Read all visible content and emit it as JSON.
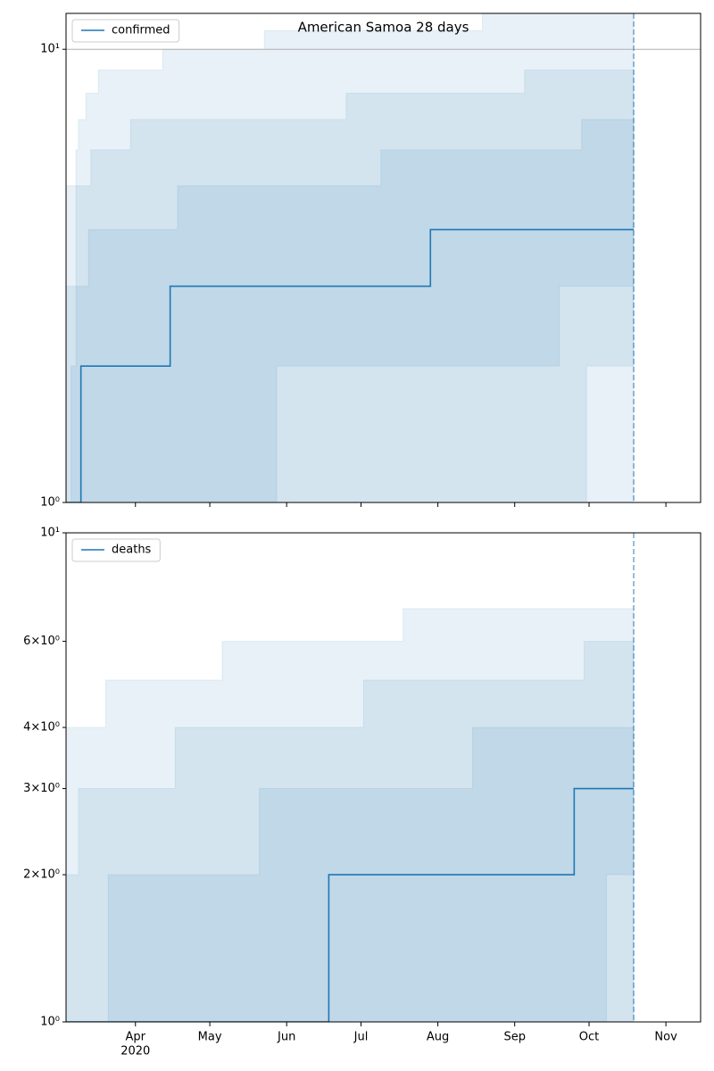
{
  "chart_data": [
    {
      "type": "line",
      "title": "American Samoa 28 days",
      "scale": "log",
      "xlim": [
        "2020-03-04",
        "2020-11-15"
      ],
      "ylim": [
        1,
        12
      ],
      "yticks": [
        {
          "value": 1,
          "label": "10⁰"
        },
        {
          "value": 10,
          "label": "10¹"
        }
      ],
      "xticks": [
        "2020-04-01",
        "2020-05-01",
        "2020-06-01",
        "2020-07-01",
        "2020-08-01",
        "2020-09-01",
        "2020-10-01",
        "2020-11-01"
      ],
      "hline": 10,
      "vline": "2020-10-19",
      "legend": "upper left",
      "band_color": "#1f77b4",
      "band_alpha": 0.1,
      "series": [
        {
          "name": "confirmed",
          "color": "#1f77b4",
          "x": [
            "2020-03-04",
            "2020-03-10",
            "2020-04-15",
            "2020-07-29",
            "2020-10-19"
          ],
          "values": [
            1,
            2,
            3,
            4,
            4
          ]
        }
      ],
      "bands": [
        {
          "x": [
            "2020-03-04",
            "2020-03-08",
            "2020-03-09",
            "2020-03-12",
            "2020-03-17",
            "2020-04-12",
            "2020-05-23",
            "2020-08-19",
            "2020-10-19"
          ],
          "upper": [
            5,
            6,
            7,
            8,
            9,
            10,
            11,
            13,
            13
          ],
          "lower": [
            1,
            1,
            1,
            1,
            1,
            1,
            1,
            1,
            1
          ]
        },
        {
          "x": [
            "2020-03-04",
            "2020-03-08",
            "2020-03-14",
            "2020-03-30",
            "2020-06-25",
            "2020-09-05",
            "2020-09-30",
            "2020-10-19"
          ],
          "upper": [
            3,
            5,
            6,
            7,
            8,
            9,
            9,
            9
          ],
          "lower": [
            1,
            1,
            1,
            1,
            1,
            1,
            2,
            2
          ]
        },
        {
          "x": [
            "2020-03-04",
            "2020-03-06",
            "2020-03-08",
            "2020-03-13",
            "2020-04-18",
            "2020-05-28",
            "2020-07-09",
            "2020-09-19",
            "2020-09-28",
            "2020-10-19"
          ],
          "upper": [
            1,
            2,
            3,
            4,
            5,
            5,
            6,
            6,
            7,
            7
          ],
          "lower": [
            1,
            1,
            1,
            1,
            1,
            2,
            2,
            3,
            3,
            3
          ]
        }
      ]
    },
    {
      "type": "line",
      "scale": "log",
      "xlim": [
        "2020-03-04",
        "2020-11-15"
      ],
      "ylim": [
        1,
        10
      ],
      "yticks": [
        {
          "value": 1,
          "label": "10⁰"
        },
        {
          "value": 2,
          "label": "2×10⁰"
        },
        {
          "value": 3,
          "label": "3×10⁰"
        },
        {
          "value": 4,
          "label": "4×10⁰"
        },
        {
          "value": 6,
          "label": "6×10⁰"
        },
        {
          "value": 10,
          "label": "10¹"
        }
      ],
      "xticks": [
        {
          "value": "2020-04-01",
          "label": "Apr"
        },
        {
          "value": "2020-05-01",
          "label": "May"
        },
        {
          "value": "2020-06-01",
          "label": "Jun"
        },
        {
          "value": "2020-07-01",
          "label": "Jul"
        },
        {
          "value": "2020-08-01",
          "label": "Aug"
        },
        {
          "value": "2020-09-01",
          "label": "Sep"
        },
        {
          "value": "2020-10-01",
          "label": "Oct"
        },
        {
          "value": "2020-11-01",
          "label": "Nov"
        }
      ],
      "xtick_sublabel": {
        "value": "2020-04-01",
        "label": "2020"
      },
      "vline": "2020-10-19",
      "legend": "upper left",
      "band_color": "#1f77b4",
      "band_alpha": 0.1,
      "series": [
        {
          "name": "deaths",
          "color": "#1f77b4",
          "x": [
            "2020-03-04",
            "2020-06-18",
            "2020-09-25",
            "2020-10-19"
          ],
          "values": [
            1,
            2,
            3,
            3
          ]
        }
      ],
      "bands": [
        {
          "x": [
            "2020-03-04",
            "2020-03-20",
            "2020-05-06",
            "2020-07-18",
            "2020-10-19"
          ],
          "upper": [
            4,
            5,
            6,
            7,
            7
          ],
          "lower": [
            1,
            1,
            1,
            1,
            1
          ]
        },
        {
          "x": [
            "2020-03-04",
            "2020-03-09",
            "2020-04-17",
            "2020-07-02",
            "2020-09-29",
            "2020-10-05",
            "2020-10-08",
            "2020-10-19"
          ],
          "upper": [
            2,
            3,
            4,
            5,
            6,
            6,
            6,
            6
          ],
          "lower": [
            1,
            1,
            1,
            1,
            1,
            1,
            2,
            2
          ]
        },
        {
          "x": [
            "2020-03-21",
            "2020-05-21",
            "2020-08-15",
            "2020-10-19"
          ],
          "upper": [
            2,
            3,
            4,
            4
          ],
          "lower": [
            1,
            1,
            1,
            1
          ]
        }
      ]
    }
  ]
}
